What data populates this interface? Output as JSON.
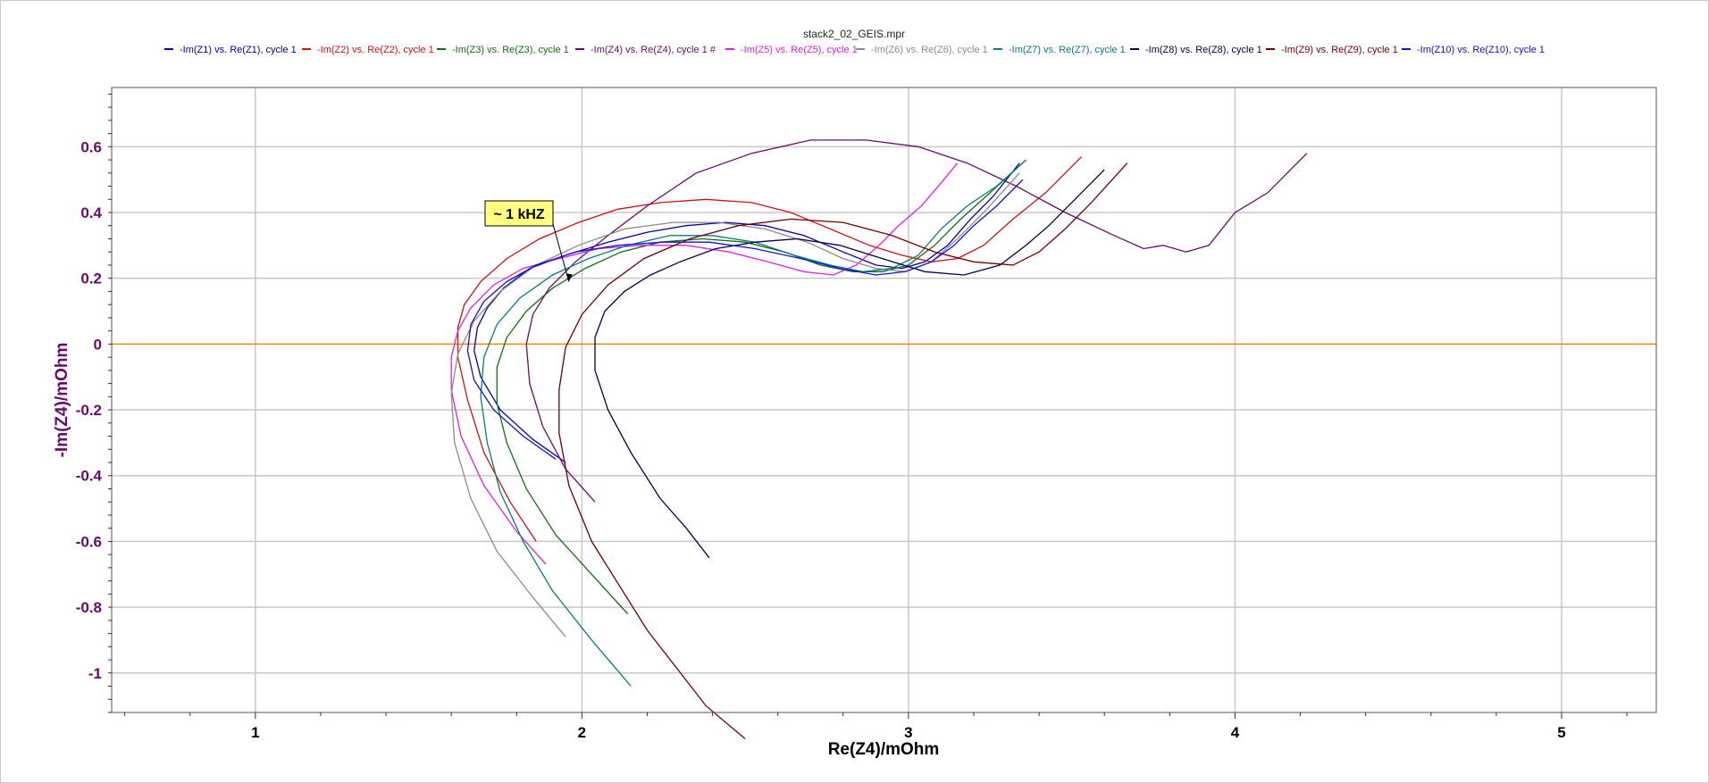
{
  "chart_data": {
    "type": "line",
    "title": "stack2_02_GEIS.mpr",
    "xlabel": "Re(Z4)/mOhm",
    "ylabel": "-Im(Z4)/mOhm",
    "xlim": [
      0.56,
      5.29
    ],
    "ylim": [
      -1.12,
      0.78
    ],
    "xticks": [
      1,
      2,
      3,
      4,
      5
    ],
    "yticks": [
      0.6,
      0.4,
      0.2,
      0,
      -0.2,
      -0.4,
      -0.6,
      -0.8,
      -1
    ],
    "xtick_labels": [
      "1",
      "2",
      "3",
      "4",
      "5"
    ],
    "ytick_labels": [
      "0.6",
      "0.4",
      "0.2",
      "0",
      "-0.2",
      "-0.4",
      "-0.6",
      "-0.8",
      "-1"
    ],
    "grid": true,
    "legend_position": "top",
    "zero_line_color": "#ff8000",
    "tick_color_x": "#000000",
    "tick_color_y": "#6a0a6a",
    "annotation": {
      "text": "~ 1 kHZ",
      "x": 1.96,
      "y": 0.19,
      "box_color": "#ffff80"
    },
    "series": [
      {
        "name": "-Im(Z1) vs. Re(Z1), cycle 1",
        "color": "#0000b0",
        "x": [
          1.95,
          1.85,
          1.75,
          1.69,
          1.67,
          1.68,
          1.71,
          1.76,
          1.84,
          1.95,
          2.08,
          2.2,
          2.32,
          2.44,
          2.56,
          2.68,
          2.8,
          2.9,
          2.98,
          3.05,
          3.12,
          3.19,
          3.26,
          3.34
        ],
        "y": [
          -0.36,
          -0.29,
          -0.2,
          -0.1,
          -0.02,
          0.05,
          0.11,
          0.17,
          0.23,
          0.27,
          0.31,
          0.34,
          0.36,
          0.37,
          0.36,
          0.33,
          0.28,
          0.24,
          0.23,
          0.25,
          0.3,
          0.38,
          0.45,
          0.55
        ]
      },
      {
        "name": "-Im(Z2) vs. Re(Z2), cycle 1",
        "color": "#d01010",
        "x": [
          1.86,
          1.78,
          1.7,
          1.65,
          1.62,
          1.62,
          1.64,
          1.69,
          1.77,
          1.87,
          1.99,
          2.11,
          2.24,
          2.38,
          2.52,
          2.64,
          2.76,
          2.88,
          2.98,
          3.07,
          3.15,
          3.23,
          3.32,
          3.42,
          3.53
        ],
        "y": [
          -0.6,
          -0.48,
          -0.33,
          -0.17,
          -0.04,
          0.05,
          0.12,
          0.19,
          0.26,
          0.32,
          0.37,
          0.41,
          0.43,
          0.44,
          0.43,
          0.4,
          0.35,
          0.3,
          0.27,
          0.25,
          0.26,
          0.3,
          0.38,
          0.46,
          0.57
        ]
      },
      {
        "name": "-Im(Z3) vs. Re(Z3), cycle 1",
        "color": "#107010",
        "x": [
          2.14,
          2.03,
          1.92,
          1.83,
          1.77,
          1.74,
          1.74,
          1.77,
          1.83,
          1.91,
          2.01,
          2.12,
          2.24,
          2.37,
          2.5,
          2.62,
          2.73,
          2.83,
          2.92,
          3.0,
          3.08,
          3.16,
          3.25,
          3.36
        ],
        "y": [
          -0.82,
          -0.7,
          -0.58,
          -0.44,
          -0.3,
          -0.18,
          -0.07,
          0.02,
          0.1,
          0.17,
          0.23,
          0.28,
          0.31,
          0.32,
          0.31,
          0.28,
          0.24,
          0.22,
          0.22,
          0.24,
          0.3,
          0.38,
          0.46,
          0.56
        ]
      },
      {
        "name": "-Im(Z4) vs. Re(Z4), cycle 1 #",
        "color": "#6a0a6a",
        "x": [
          2.04,
          1.95,
          1.88,
          1.84,
          1.83,
          1.85,
          1.9,
          1.98,
          2.08,
          2.2,
          2.35,
          2.52,
          2.7,
          2.87,
          3.03,
          3.18,
          3.33,
          3.48,
          3.63,
          3.72,
          3.78,
          3.85,
          3.92,
          4.0,
          4.1,
          4.22
        ],
        "y": [
          -0.48,
          -0.38,
          -0.25,
          -0.12,
          0.0,
          0.09,
          0.17,
          0.25,
          0.33,
          0.42,
          0.52,
          0.58,
          0.62,
          0.62,
          0.6,
          0.55,
          0.48,
          0.4,
          0.33,
          0.29,
          0.3,
          0.28,
          0.3,
          0.4,
          0.46,
          0.58
        ]
      },
      {
        "name": "-Im(Z5) vs. Re(Z5), cycle 1",
        "color": "#e020e0",
        "x": [
          1.89,
          1.8,
          1.7,
          1.63,
          1.6,
          1.6,
          1.62,
          1.66,
          1.73,
          1.82,
          1.93,
          2.05,
          2.18,
          2.32,
          2.45,
          2.57,
          2.68,
          2.77,
          2.84,
          2.91,
          2.97,
          3.04,
          3.1,
          3.15
        ],
        "y": [
          -0.67,
          -0.57,
          -0.43,
          -0.28,
          -0.14,
          -0.04,
          0.04,
          0.11,
          0.18,
          0.23,
          0.26,
          0.29,
          0.3,
          0.3,
          0.28,
          0.25,
          0.22,
          0.21,
          0.24,
          0.3,
          0.36,
          0.42,
          0.49,
          0.55
        ]
      },
      {
        "name": "-Im(Z6) vs. Re(Z6), cycle 1",
        "color": "#8a8a8a",
        "x": [
          1.95,
          1.85,
          1.74,
          1.66,
          1.61,
          1.6,
          1.62,
          1.67,
          1.75,
          1.86,
          1.99,
          2.13,
          2.28,
          2.42,
          2.56,
          2.69,
          2.8,
          2.9,
          2.99,
          3.07,
          3.15,
          3.24,
          3.34
        ],
        "y": [
          -0.89,
          -0.77,
          -0.63,
          -0.47,
          -0.3,
          -0.15,
          -0.03,
          0.07,
          0.16,
          0.24,
          0.3,
          0.35,
          0.37,
          0.37,
          0.35,
          0.31,
          0.26,
          0.23,
          0.22,
          0.25,
          0.32,
          0.41,
          0.52
        ]
      },
      {
        "name": "-Im(Z7) vs. Re(Z7), cycle 1",
        "color": "#0a7a7a",
        "x": [
          2.15,
          2.03,
          1.91,
          1.82,
          1.75,
          1.71,
          1.69,
          1.7,
          1.74,
          1.81,
          1.91,
          2.02,
          2.14,
          2.27,
          2.4,
          2.53,
          2.65,
          2.76,
          2.86,
          2.95,
          3.03,
          3.1,
          3.18,
          3.27,
          3.36
        ],
        "y": [
          -1.04,
          -0.9,
          -0.75,
          -0.6,
          -0.45,
          -0.3,
          -0.16,
          -0.04,
          0.06,
          0.14,
          0.21,
          0.26,
          0.3,
          0.33,
          0.33,
          0.31,
          0.27,
          0.24,
          0.22,
          0.23,
          0.27,
          0.35,
          0.42,
          0.48,
          0.56
        ]
      },
      {
        "name": "-Im(Z8) vs. Re(Z8), cycle 1",
        "color": "#000050",
        "x": [
          2.39,
          2.32,
          2.24,
          2.15,
          2.08,
          2.04,
          2.04,
          2.07,
          2.13,
          2.21,
          2.3,
          2.41,
          2.53,
          2.66,
          2.79,
          2.92,
          3.05,
          3.17,
          3.28,
          3.36,
          3.43,
          3.5,
          3.6
        ],
        "y": [
          -0.65,
          -0.56,
          -0.47,
          -0.33,
          -0.2,
          -0.08,
          0.02,
          0.1,
          0.16,
          0.21,
          0.25,
          0.29,
          0.31,
          0.32,
          0.3,
          0.26,
          0.22,
          0.21,
          0.24,
          0.3,
          0.36,
          0.43,
          0.53
        ]
      },
      {
        "name": "-Im(Z9) vs. Re(Z9), cycle 1",
        "color": "#700000",
        "x": [
          2.5,
          2.38,
          2.2,
          2.03,
          1.96,
          1.93,
          1.93,
          1.95,
          2.0,
          2.08,
          2.19,
          2.33,
          2.48,
          2.64,
          2.8,
          2.95,
          3.08,
          3.2,
          3.32,
          3.4,
          3.48,
          3.56,
          3.67
        ],
        "y": [
          -1.2,
          -1.1,
          -0.87,
          -0.6,
          -0.43,
          -0.27,
          -0.14,
          -0.01,
          0.09,
          0.18,
          0.26,
          0.32,
          0.36,
          0.38,
          0.37,
          0.33,
          0.28,
          0.25,
          0.24,
          0.28,
          0.35,
          0.43,
          0.55
        ]
      },
      {
        "name": "-Im(Z10) vs. Re(Z10), cycle 1",
        "color": "#1010e0",
        "x": [
          1.92,
          1.82,
          1.73,
          1.67,
          1.65,
          1.66,
          1.7,
          1.77,
          1.86,
          1.98,
          2.11,
          2.25,
          2.39,
          2.53,
          2.67,
          2.79,
          2.9,
          2.99,
          3.07,
          3.14,
          3.2,
          3.27,
          3.35
        ],
        "y": [
          -0.35,
          -0.28,
          -0.2,
          -0.11,
          -0.02,
          0.06,
          0.13,
          0.19,
          0.24,
          0.28,
          0.3,
          0.31,
          0.31,
          0.29,
          0.26,
          0.23,
          0.21,
          0.22,
          0.25,
          0.3,
          0.36,
          0.42,
          0.5
        ]
      }
    ]
  }
}
